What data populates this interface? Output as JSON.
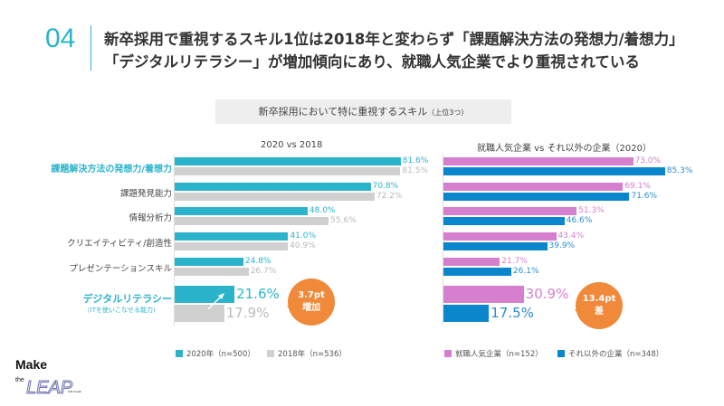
{
  "header": {
    "number": "04",
    "line1": "新卒採用で重視するスキル1位は2018年と変わらず「課題解決方法の発想力/着想力」",
    "line2": "「デジタルリテラシー」が増加傾向にあり、就職人気企業でより重視されている"
  },
  "subtitle": {
    "main": "新卒採用において特に重視するスキル",
    "note": "（上位3つ）"
  },
  "chart_data": [
    {
      "type": "bar",
      "orientation": "horizontal",
      "title": "2020 vs 2018",
      "categories": [
        "課題解決方法の発想力/着想力",
        "課題発見能力",
        "情報分析力",
        "クリエイティビティ/創造性",
        "プレゼンテーションスキル",
        "デジタルリテラシー"
      ],
      "category_note": "（ITを使いこなせる能力）",
      "series": [
        {
          "name": "2020年（n=500）",
          "color": "#2bb3cc",
          "values": [
            81.6,
            70.8,
            48.0,
            41.0,
            24.8,
            21.6
          ]
        },
        {
          "name": "2018年（n=536）",
          "color": "#d0d0d0",
          "values": [
            81.5,
            72.2,
            55.6,
            40.9,
            26.7,
            17.9
          ]
        }
      ],
      "annotation": {
        "line1": "3.7pt",
        "line2": "増加"
      },
      "unit": "%"
    },
    {
      "type": "bar",
      "orientation": "horizontal",
      "title": "就職人気企業 vs それ以外の企業（2020）",
      "series": [
        {
          "name": "就職人気企業（n=152）",
          "color": "#d77fcf",
          "values": [
            73.0,
            69.1,
            51.3,
            43.4,
            21.7,
            30.9
          ]
        },
        {
          "name": "それ以外の企業（n=348）",
          "color": "#0a86cc",
          "values": [
            85.3,
            71.6,
            46.6,
            39.9,
            26.1,
            17.5
          ]
        }
      ],
      "annotation": {
        "line1": "13.4pt",
        "line2": "差"
      },
      "unit": "%"
    }
  ],
  "logo": {
    "text": "Make the LEAP with Creative Cloud"
  }
}
